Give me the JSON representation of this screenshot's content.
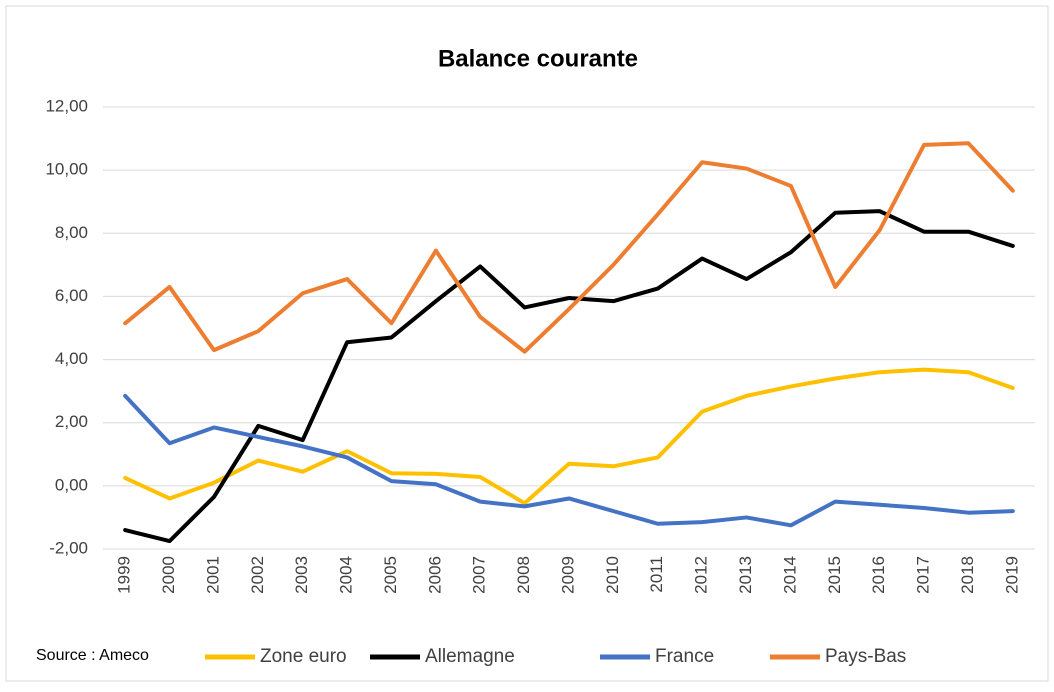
{
  "chart_data": {
    "type": "line",
    "title": "Balance courante",
    "categories": [
      "1999",
      "2000",
      "2001",
      "2002",
      "2003",
      "2004",
      "2005",
      "2006",
      "2007",
      "2008",
      "2009",
      "2010",
      "2011",
      "2012",
      "2013",
      "2014",
      "2015",
      "2016",
      "2017",
      "2018",
      "2019"
    ],
    "series": [
      {
        "name": "Zone euro",
        "color": "#FFC000",
        "values": [
          0.25,
          -0.4,
          0.1,
          0.8,
          0.45,
          1.1,
          0.4,
          0.38,
          0.28,
          -0.55,
          0.7,
          0.62,
          0.9,
          2.35,
          2.85,
          3.15,
          3.4,
          3.6,
          3.68,
          3.6,
          3.1
        ]
      },
      {
        "name": "Allemagne",
        "color": "#000000",
        "values": [
          -1.4,
          -1.75,
          -0.35,
          1.9,
          1.45,
          4.55,
          4.7,
          5.85,
          6.95,
          5.65,
          5.95,
          5.85,
          6.25,
          7.2,
          6.55,
          7.4,
          8.65,
          8.7,
          8.05,
          8.05,
          7.6
        ]
      },
      {
        "name": "France",
        "color": "#4472C4",
        "values": [
          2.85,
          1.35,
          1.85,
          1.55,
          1.25,
          0.9,
          0.15,
          0.05,
          -0.5,
          -0.65,
          -0.4,
          -0.8,
          -1.2,
          -1.15,
          -1.0,
          -1.25,
          -0.5,
          -0.6,
          -0.7,
          -0.85,
          -0.8
        ]
      },
      {
        "name": "Pays-Bas",
        "color": "#ED7D31",
        "values": [
          5.15,
          6.3,
          4.3,
          4.9,
          6.1,
          6.55,
          5.15,
          7.45,
          5.35,
          4.25,
          5.6,
          7.0,
          8.6,
          10.25,
          10.05,
          9.5,
          6.3,
          8.1,
          10.8,
          10.85,
          9.35
        ]
      }
    ],
    "ylim": [
      -2,
      12
    ],
    "yticks": [
      {
        "value": -2,
        "label": "-2,00"
      },
      {
        "value": 0,
        "label": "0,00"
      },
      {
        "value": 2,
        "label": "2,00"
      },
      {
        "value": 4,
        "label": "4,00"
      },
      {
        "value": 6,
        "label": "6,00"
      },
      {
        "value": 8,
        "label": "8,00"
      },
      {
        "value": 10,
        "label": "10,00"
      },
      {
        "value": 12,
        "label": "12,00"
      }
    ],
    "grid": true,
    "annotation": "Source : Ameco",
    "legend": "bottom"
  }
}
